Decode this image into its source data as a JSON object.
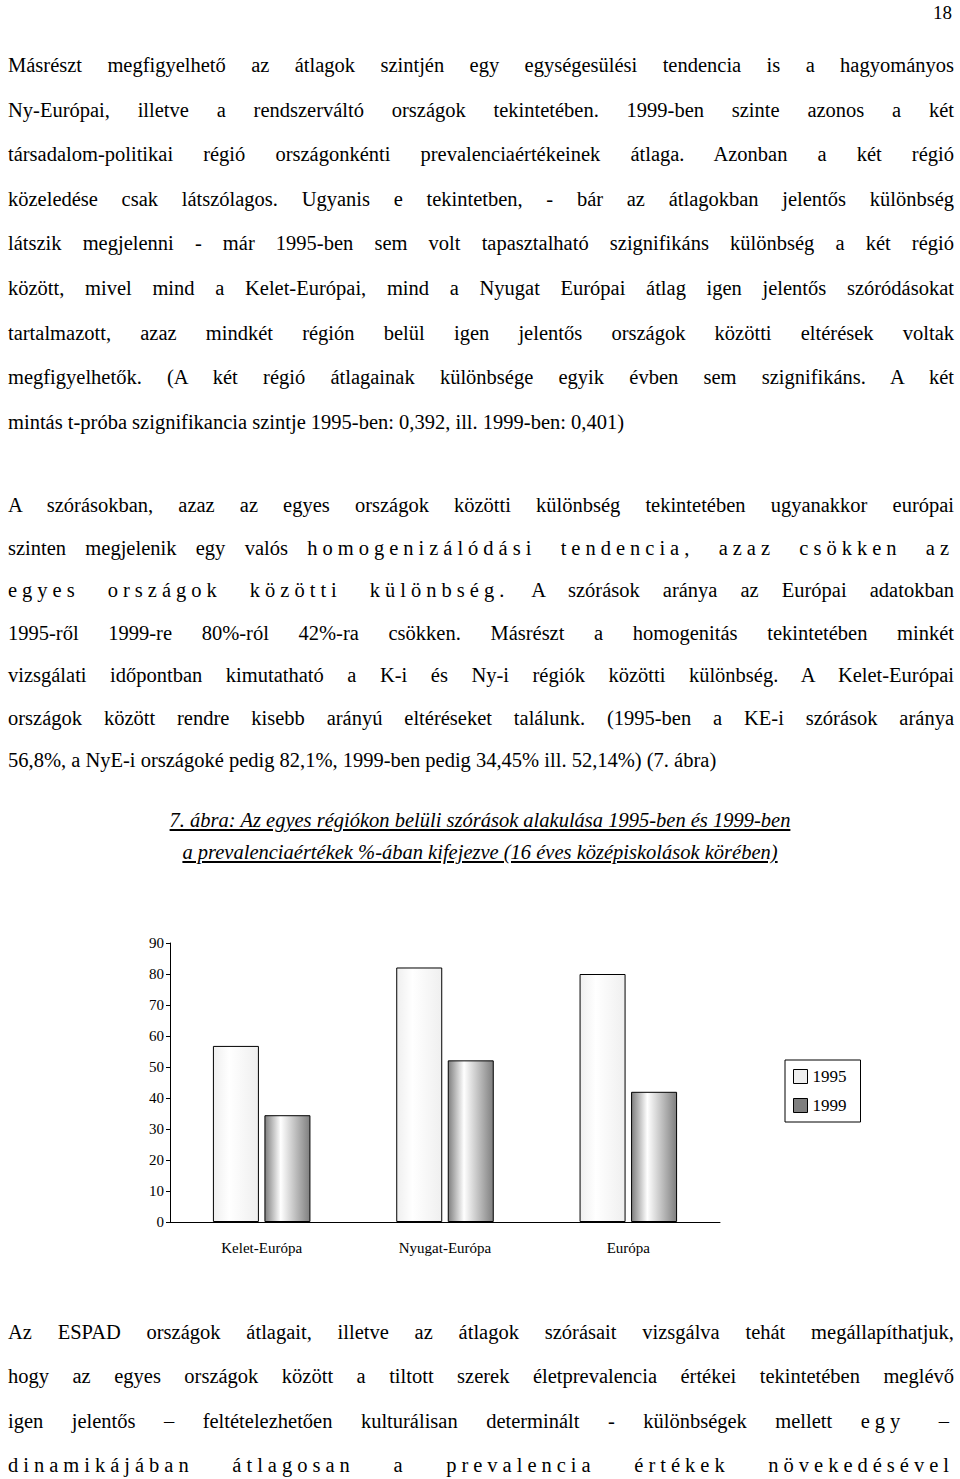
{
  "page_number": "18",
  "paragraphs": [
    {
      "lines": [
        "Másrészt megfigyelhető az átlagok szintjén egy egységesülési tendencia is a hagyományos",
        "Ny-Európai, illetve a rendszerváltó országok tekintetében. 1999-ben szinte azonos a két",
        "társadalom-politikai régió országonkénti prevalenciaértékeinek átlaga. Azonban a két régió",
        "közeledése csak látszólagos. Ugyanis e tekintetben, - bár az átlagokban jelentős különbség",
        "látszik megjelenni - már 1995-ben sem volt tapasztalható szignifikáns különbség a két régió",
        "között, mivel mind a Kelet-Európai, mind a Nyugat Európai átlag igen jelentős szóródásokat",
        "tartalmazott, azaz mindkét régión belül igen jelentős országok közötti eltérések voltak",
        "megfigyelhetők. (A két régió átlagainak különbsége egyik évben sem szignifikáns. A két",
        "mintás t-próba szignifikancia szintje 1995-ben: 0,392, ill. 1999-ben: 0,401)"
      ]
    },
    {
      "lines": [
        "A szórásokban, azaz az egyes országok közötti különbség tekintetében ugyanakkor európai",
        [
          {
            "text": "szinten megjelenik egy valós "
          },
          {
            "text": "homogenizálódási tendencia, azaz csökken az",
            "spaced": true
          }
        ],
        [
          {
            "text": "egyes országok közötti különbség.",
            "spaced": true
          },
          {
            "text": " A szórások aránya az Európai adatokban"
          }
        ],
        "1995-ről 1999-re 80%-ról 42%-ra csökken. Másrészt a homogenitás tekintetében minkét",
        "vizsgálati időpontban kimutatható a K-i és Ny-i régiók közötti különbség. A Kelet-Európai",
        "országok között rendre kisebb arányú eltéréseket találunk. (1995-ben a KE-i szórások aránya",
        "56,8%, a NyE-i országoké pedig 82,1%, 1999-ben pedig 34,45% ill. 52,14%) (7. ábra)"
      ]
    }
  ],
  "figure": {
    "caption": [
      "7. ábra: Az egyes régiókon belüli szórások alakulása 1995-ben és 1999-ben",
      "a prevalenciaértékek %-ában kifejezve (16 éves középiskolások körében)"
    ]
  },
  "chart_data": {
    "type": "bar",
    "categories": [
      "Kelet-Európa",
      "Nyugat-Európa",
      "Európa"
    ],
    "series": [
      {
        "name": "1995",
        "color": "#efefef",
        "values": [
          56.8,
          82.1,
          80
        ]
      },
      {
        "name": "1999",
        "color": "#7f7f7f",
        "values": [
          34.45,
          52.14,
          42
        ]
      }
    ],
    "ylim": [
      0,
      90
    ],
    "yticks": [
      0,
      10,
      20,
      30,
      40,
      50,
      60,
      70,
      80,
      90
    ],
    "grid": false,
    "legend": "right"
  },
  "closing_paragraph": {
    "continues_on_next_page": true,
    "lines": [
      "Az ESPAD országok átlagait, illetve az átlagok szórásait vizsgálva tehát megállapíthatjuk,",
      "hogy az egyes országok között a tiltott szerek életprevalencia értékei tekintetében meglévő",
      [
        {
          "text": "igen jelentős – feltételezhetően kulturálisan determinált - különbségek mellett "
        },
        {
          "text": "egy –",
          "spaced": true
        }
      ],
      [
        {
          "text": "dinamikájában átlagosan a prevalencia értékek növekedésével",
          "spaced": true
        }
      ]
    ]
  }
}
